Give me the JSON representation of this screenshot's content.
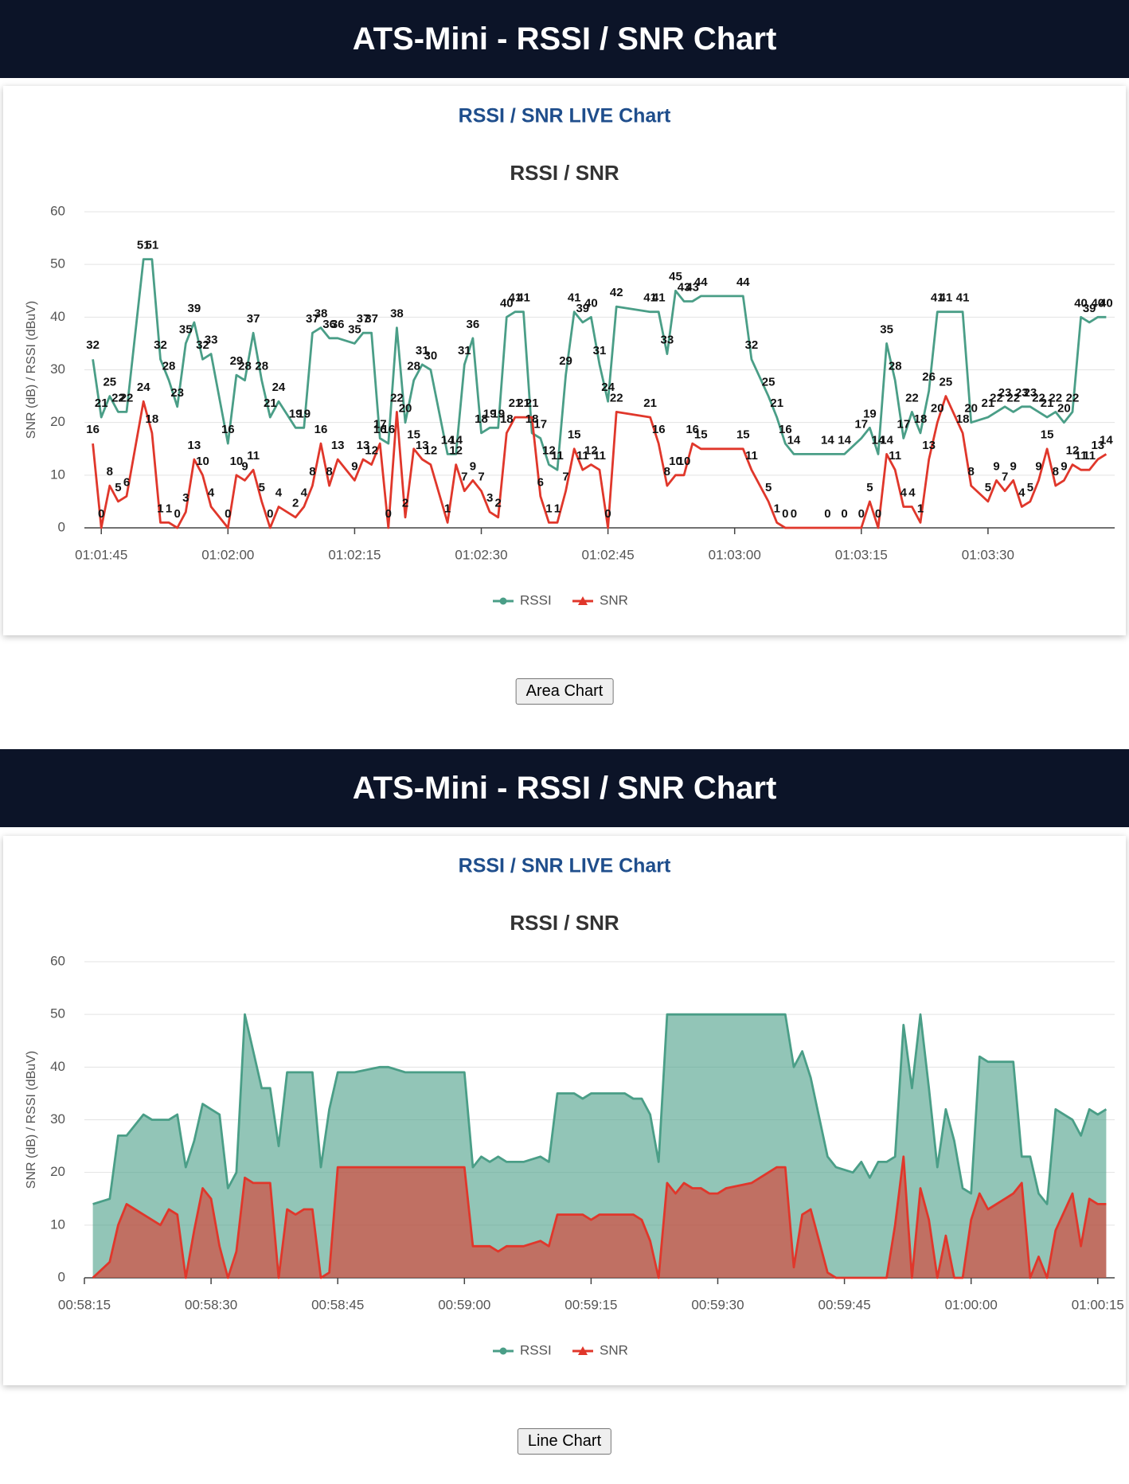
{
  "panels": [
    {
      "header": "ATS-Mini - RSSI / SNR Chart",
      "subtitle": "RSSI / SNR LIVE Chart",
      "button": "Area Chart"
    },
    {
      "header": "ATS-Mini - RSSI / SNR Chart",
      "subtitle": "RSSI / SNR LIVE Chart",
      "button": "Line Chart"
    }
  ],
  "chart_data": [
    {
      "type": "line",
      "title": "RSSI / SNR",
      "y_label": "SNR (dB) / RSSI (dBuV)",
      "data_labels": true,
      "grid": true,
      "legend": "bottom",
      "xlim": [
        "01:01:43",
        "01:03:45"
      ],
      "xticks": [
        "01:01:45",
        "01:02:00",
        "01:02:15",
        "01:02:30",
        "01:02:45",
        "01:03:00",
        "01:03:15",
        "01:03:30"
      ],
      "ylim": [
        0,
        60
      ],
      "yticks": [
        0,
        10,
        20,
        30,
        40,
        50,
        60
      ],
      "x": [
        "01:01:44",
        "01:01:45",
        "01:01:46",
        "01:01:47",
        "01:01:48",
        "01:01:50",
        "01:01:51",
        "01:01:52",
        "01:01:53",
        "01:01:54",
        "01:01:55",
        "01:01:56",
        "01:01:57",
        "01:01:58",
        "01:02:00",
        "01:02:01",
        "01:02:02",
        "01:02:03",
        "01:02:04",
        "01:02:05",
        "01:02:06",
        "01:02:08",
        "01:02:09",
        "01:02:10",
        "01:02:11",
        "01:02:12",
        "01:02:13",
        "01:02:15",
        "01:02:16",
        "01:02:17",
        "01:02:18",
        "01:02:19",
        "01:02:20",
        "01:02:21",
        "01:02:22",
        "01:02:23",
        "01:02:24",
        "01:02:26",
        "01:02:27",
        "01:02:28",
        "01:02:29",
        "01:02:30",
        "01:02:31",
        "01:02:32",
        "01:02:33",
        "01:02:34",
        "01:02:35",
        "01:02:36",
        "01:02:37",
        "01:02:38",
        "01:02:39",
        "01:02:40",
        "01:02:41",
        "01:02:42",
        "01:02:43",
        "01:02:44",
        "01:02:45",
        "01:02:46",
        "01:02:50",
        "01:02:51",
        "01:02:52",
        "01:02:53",
        "01:02:54",
        "01:02:55",
        "01:02:56",
        "01:03:01",
        "01:03:02",
        "01:03:04",
        "01:03:05",
        "01:03:06",
        "01:03:07",
        "01:03:11",
        "01:03:13",
        "01:03:15",
        "01:03:16",
        "01:03:17",
        "01:03:18",
        "01:03:19",
        "01:03:20",
        "01:03:21",
        "01:03:22",
        "01:03:23",
        "01:03:24",
        "01:03:25",
        "01:03:27",
        "01:03:28",
        "01:03:30",
        "01:03:31",
        "01:03:32",
        "01:03:33",
        "01:03:34",
        "01:03:35",
        "01:03:36",
        "01:03:37",
        "01:03:38",
        "01:03:39",
        "01:03:40",
        "01:03:41",
        "01:03:42",
        "01:03:43",
        "01:03:44"
      ],
      "series": [
        {
          "name": "RSSI",
          "color": "#4a9e87",
          "values": [
            32,
            21,
            25,
            22,
            22,
            51,
            51,
            32,
            28,
            23,
            35,
            39,
            32,
            33,
            16,
            29,
            28,
            37,
            28,
            21,
            24,
            19,
            19,
            37,
            38,
            36,
            36,
            35,
            37,
            37,
            17,
            16,
            38,
            20,
            28,
            31,
            30,
            14,
            14,
            31,
            36,
            18,
            19,
            19,
            40,
            41,
            41,
            18,
            17,
            12,
            11,
            29,
            41,
            39,
            40,
            31,
            24,
            42,
            41,
            41,
            33,
            45,
            43,
            43,
            44,
            44,
            32,
            25,
            21,
            16,
            14,
            14,
            14,
            17,
            19,
            14,
            35,
            28,
            17,
            22,
            18,
            26,
            41,
            41,
            41,
            20,
            21,
            22,
            23,
            22,
            23,
            23,
            22,
            21,
            22,
            20,
            22,
            40,
            39,
            40,
            40
          ]
        },
        {
          "name": "SNR",
          "color": "#e0372b",
          "values": [
            16,
            0,
            8,
            5,
            6,
            24,
            18,
            1,
            1,
            0,
            3,
            13,
            10,
            4,
            0,
            10,
            9,
            11,
            5,
            0,
            4,
            2,
            4,
            8,
            16,
            8,
            13,
            9,
            13,
            12,
            16,
            0,
            22,
            2,
            15,
            13,
            12,
            1,
            12,
            7,
            9,
            7,
            3,
            2,
            18,
            21,
            21,
            21,
            6,
            1,
            1,
            7,
            15,
            11,
            12,
            11,
            0,
            22,
            21,
            16,
            8,
            10,
            10,
            16,
            15,
            15,
            11,
            5,
            1,
            0,
            0,
            0,
            0,
            0,
            5,
            0,
            14,
            11,
            4,
            4,
            1,
            13,
            20,
            25,
            18,
            8,
            5,
            9,
            7,
            9,
            4,
            5,
            9,
            15,
            8,
            9,
            12,
            11,
            11,
            13,
            14
          ]
        }
      ]
    },
    {
      "type": "area",
      "title": "RSSI / SNR",
      "y_label": "SNR (dB) / RSSI (dBuV)",
      "data_labels": false,
      "grid": true,
      "legend": "bottom",
      "xlim": [
        "00:58:15",
        "01:00:17"
      ],
      "xticks": [
        "00:58:15",
        "00:58:30",
        "00:58:45",
        "00:59:00",
        "00:59:15",
        "00:59:30",
        "00:59:45",
        "01:00:00",
        "01:00:15"
      ],
      "ylim": [
        0,
        60
      ],
      "yticks": [
        0,
        10,
        20,
        30,
        40,
        50,
        60
      ],
      "x": [
        "00:58:16",
        "00:58:18",
        "00:58:19",
        "00:58:20",
        "00:58:21",
        "00:58:22",
        "00:58:23",
        "00:58:24",
        "00:58:25",
        "00:58:26",
        "00:58:27",
        "00:58:28",
        "00:58:29",
        "00:58:30",
        "00:58:31",
        "00:58:32",
        "00:58:33",
        "00:58:34",
        "00:58:35",
        "00:58:36",
        "00:58:37",
        "00:58:38",
        "00:58:39",
        "00:58:40",
        "00:58:41",
        "00:58:42",
        "00:58:43",
        "00:58:44",
        "00:58:45",
        "00:58:47",
        "00:58:50",
        "00:58:51",
        "00:58:53",
        "00:59:00",
        "00:59:01",
        "00:59:02",
        "00:59:03",
        "00:59:04",
        "00:59:05",
        "00:59:07",
        "00:59:09",
        "00:59:10",
        "00:59:11",
        "00:59:13",
        "00:59:14",
        "00:59:15",
        "00:59:16",
        "00:59:19",
        "00:59:20",
        "00:59:21",
        "00:59:22",
        "00:59:23",
        "00:59:24",
        "00:59:25",
        "00:59:26",
        "00:59:27",
        "00:59:28",
        "00:59:29",
        "00:59:30",
        "00:59:31",
        "00:59:34",
        "00:59:36",
        "00:59:37",
        "00:59:38",
        "00:59:39",
        "00:59:40",
        "00:59:41",
        "00:59:43",
        "00:59:44",
        "00:59:46",
        "00:59:47",
        "00:59:48",
        "00:59:49",
        "00:59:50",
        "00:59:51",
        "00:59:52",
        "00:59:53",
        "00:59:54",
        "00:59:55",
        "00:59:56",
        "00:59:57",
        "00:59:58",
        "00:59:59",
        "01:00:00",
        "01:00:01",
        "01:00:02",
        "01:00:04",
        "01:00:05",
        "01:00:06",
        "01:00:07",
        "01:00:08",
        "01:00:09",
        "01:00:10",
        "01:00:12",
        "01:00:13",
        "01:00:14",
        "01:00:15",
        "01:00:16"
      ],
      "series": [
        {
          "name": "RSSI",
          "color": "#4a9e87",
          "values": [
            14,
            15,
            27,
            27,
            29,
            31,
            30,
            30,
            30,
            31,
            21,
            26,
            33,
            32,
            31,
            17,
            20,
            50,
            43,
            36,
            36,
            25,
            39,
            39,
            39,
            39,
            21,
            32,
            39,
            39,
            40,
            40,
            39,
            39,
            21,
            23,
            22,
            23,
            22,
            22,
            23,
            22,
            35,
            35,
            34,
            35,
            35,
            35,
            34,
            34,
            31,
            22,
            50,
            50,
            50,
            50,
            50,
            50,
            50,
            50,
            50,
            50,
            50,
            50,
            40,
            43,
            38,
            23,
            21,
            20,
            22,
            19,
            22,
            22,
            23,
            48,
            36,
            50,
            36,
            21,
            32,
            26,
            17,
            16,
            42,
            41,
            41,
            41,
            23,
            23,
            16,
            14,
            32,
            30,
            27,
            32,
            31,
            32
          ]
        },
        {
          "name": "SNR",
          "color": "#e0372b",
          "values": [
            0,
            3,
            10,
            14,
            13,
            12,
            11,
            10,
            13,
            12,
            0,
            9,
            17,
            15,
            6,
            0,
            5,
            19,
            18,
            18,
            18,
            0,
            13,
            12,
            13,
            13,
            0,
            1,
            21,
            21,
            21,
            21,
            21,
            21,
            6,
            6,
            6,
            5,
            6,
            6,
            7,
            6,
            12,
            12,
            12,
            11,
            12,
            12,
            12,
            11,
            7,
            0,
            18,
            16,
            18,
            17,
            17,
            16,
            16,
            17,
            18,
            20,
            21,
            21,
            2,
            12,
            13,
            1,
            0,
            0,
            0,
            0,
            0,
            0,
            10,
            23,
            0,
            17,
            11,
            0,
            8,
            0,
            0,
            11,
            16,
            13,
            15,
            16,
            18,
            0,
            4,
            0,
            9,
            16,
            6,
            15,
            14,
            14
          ]
        }
      ]
    }
  ]
}
